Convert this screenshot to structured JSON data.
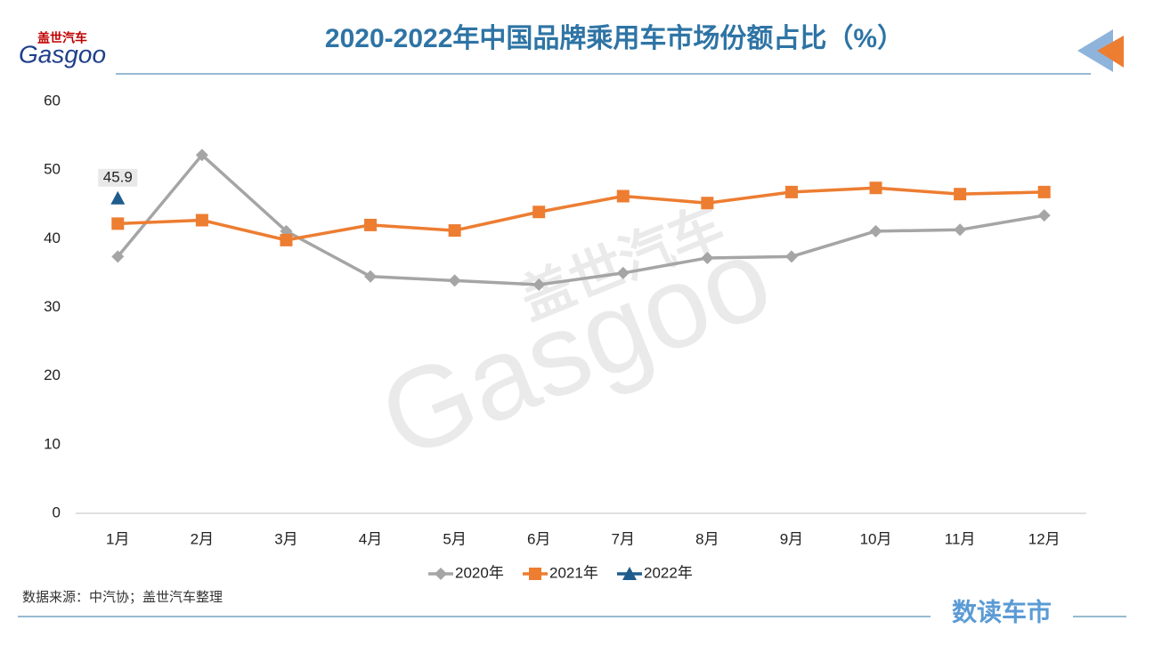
{
  "logo": {
    "cn": "盖世汽车",
    "en": "Gasgoo"
  },
  "watermark": {
    "cn": "盖世汽车",
    "en": "Gasgoo"
  },
  "source": "数据来源：中汽协；盖世汽车整理",
  "brand": "数读车市",
  "chart_data": {
    "type": "line",
    "title": "2020-2022年中国品牌乘用车市场份额占比（%）",
    "categories": [
      "1月",
      "2月",
      "3月",
      "4月",
      "5月",
      "6月",
      "7月",
      "8月",
      "9月",
      "10月",
      "11月",
      "12月"
    ],
    "series": [
      {
        "name": "2020年",
        "color": "#a5a5a5",
        "marker": "diamond",
        "values": [
          37.4,
          52.2,
          41.1,
          34.5,
          33.9,
          33.3,
          35.0,
          37.2,
          37.4,
          41.1,
          41.3,
          43.4
        ]
      },
      {
        "name": "2021年",
        "color": "#ed7d31",
        "marker": "square",
        "values": [
          42.2,
          42.7,
          39.8,
          42.0,
          41.2,
          43.9,
          46.2,
          45.2,
          46.8,
          47.4,
          46.5,
          46.8
        ]
      },
      {
        "name": "2022年",
        "color": "#1f5c8b",
        "marker": "triangle",
        "values": [
          45.9,
          null,
          null,
          null,
          null,
          null,
          null,
          null,
          null,
          null,
          null,
          null
        ],
        "data_labels": true
      }
    ],
    "ylim": [
      0,
      60
    ],
    "yticks": [
      0,
      10,
      20,
      30,
      40,
      50,
      60
    ],
    "grid": false,
    "legend": "bottom"
  }
}
